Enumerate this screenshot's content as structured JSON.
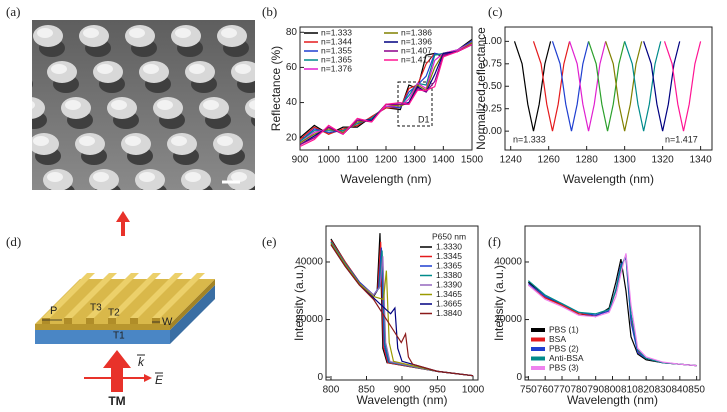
{
  "panel_labels": [
    "(a)",
    "(b)",
    "(c)",
    "(d)",
    "(e)",
    "(f)"
  ],
  "diagram": {
    "labels": [
      "P",
      "T3",
      "T2",
      "T1",
      "W",
      "k",
      "E",
      "TM"
    ]
  },
  "chart_data": [
    {
      "type": "line",
      "y_label": "Reflectance (%)",
      "x_label": "Wavelength (nm)",
      "x": [
        900,
        950,
        1000,
        1050,
        1100,
        1150,
        1200,
        1250,
        1280,
        1310,
        1340,
        1370,
        1400,
        1450,
        1500
      ],
      "xlim": [
        900,
        1500
      ],
      "ylim": [
        13,
        83
      ],
      "xticks": [
        900,
        1000,
        1100,
        1200,
        1300,
        1400,
        1500
      ],
      "yticks": [
        20,
        40,
        60,
        80
      ],
      "annotations": [
        {
          "text": "D1"
        }
      ],
      "series": [
        {
          "name": "n=1.333",
          "color": "#000000",
          "values": [
            20,
            27,
            22,
            26,
            26,
            32,
            37,
            36,
            50,
            48,
            67,
            68,
            66,
            70,
            76
          ]
        },
        {
          "name": "n=1.344",
          "color": "#e41a1c",
          "values": [
            19,
            26,
            22,
            25,
            27,
            32,
            37,
            37,
            48,
            50,
            62,
            68,
            67,
            70,
            75
          ]
        },
        {
          "name": "n=1.355",
          "color": "#1f3fd0",
          "values": [
            18,
            25,
            23,
            24,
            28,
            31,
            38,
            37,
            46,
            50,
            55,
            68,
            67,
            70,
            75
          ]
        },
        {
          "name": "n=1.365",
          "color": "#008b8b",
          "values": [
            18,
            24,
            24,
            24,
            28,
            31,
            38,
            38,
            44,
            51,
            50,
            67,
            68,
            70,
            74
          ]
        },
        {
          "name": "n=1.376",
          "color": "#e020d0",
          "values": [
            17,
            23,
            25,
            23,
            29,
            30,
            38,
            38,
            42,
            51,
            48,
            64,
            68,
            70,
            74
          ]
        },
        {
          "name": "n=1.386",
          "color": "#808000",
          "values": [
            17,
            22,
            25,
            23,
            29,
            30,
            39,
            38,
            40,
            50,
            47,
            60,
            68,
            69,
            74
          ]
        },
        {
          "name": "n=1.396",
          "color": "#000080",
          "values": [
            16,
            21,
            26,
            22,
            30,
            30,
            39,
            39,
            40,
            49,
            46,
            56,
            68,
            69,
            73
          ]
        },
        {
          "name": "n=1.407",
          "color": "#8b008b",
          "values": [
            16,
            20,
            26,
            22,
            30,
            29,
            39,
            39,
            39,
            48,
            46,
            52,
            67,
            69,
            73
          ]
        },
        {
          "name": "n=1.417",
          "color": "#ff1493",
          "values": [
            15,
            19,
            27,
            22,
            31,
            29,
            39,
            40,
            39,
            47,
            47,
            49,
            66,
            69,
            73
          ]
        }
      ]
    },
    {
      "type": "line",
      "y_label": "Normalized reflectance",
      "x_label": "Wavelength (nm)",
      "xlim": [
        1237,
        1346
      ],
      "ylim": [
        -0.21,
        1.16
      ],
      "xticks": [
        1240,
        1260,
        1280,
        1300,
        1320,
        1340
      ],
      "yticks": [
        {
          "value": 0,
          "label": "0.00"
        },
        {
          "value": 0.25,
          "label": "0.25"
        },
        {
          "value": 0.5,
          "label": "0.50"
        },
        {
          "value": 0.75,
          "label": "0.75"
        },
        {
          "value": 1,
          "label": "1.00"
        }
      ],
      "annotations": [
        {
          "text": "n=1.333"
        },
        {
          "text": "n=1.417"
        }
      ],
      "series": [
        {
          "color": "#000000",
          "x": [
            1242,
            1246,
            1249,
            1252,
            1255,
            1258,
            1261
          ],
          "values": [
            1,
            0.75,
            0.3,
            0,
            0.3,
            0.75,
            1
          ]
        },
        {
          "color": "#e41a1c",
          "x": [
            1252,
            1256,
            1259,
            1262,
            1265,
            1268,
            1271
          ],
          "values": [
            1,
            0.75,
            0.3,
            0,
            0.3,
            0.75,
            1
          ]
        },
        {
          "color": "#1f3fd0",
          "x": [
            1262,
            1266,
            1269,
            1272,
            1275,
            1278,
            1281
          ],
          "values": [
            1,
            0.75,
            0.3,
            0,
            0.3,
            0.75,
            1
          ]
        },
        {
          "color": "#e020d0",
          "x": [
            1271,
            1275,
            1278,
            1281,
            1284,
            1287,
            1290
          ],
          "values": [
            1,
            0.75,
            0.3,
            0,
            0.3,
            0.75,
            1
          ]
        },
        {
          "color": "#2ca02c",
          "x": [
            1281,
            1285,
            1288,
            1291,
            1294,
            1297,
            1300
          ],
          "values": [
            1,
            0.75,
            0.3,
            0,
            0.3,
            0.75,
            1
          ]
        },
        {
          "color": "#808000",
          "x": [
            1290,
            1294,
            1297,
            1300,
            1303,
            1306,
            1309
          ],
          "values": [
            1,
            0.75,
            0.3,
            0,
            0.3,
            0.75,
            1
          ]
        },
        {
          "color": "#008b8b",
          "x": [
            1300,
            1304,
            1307,
            1310,
            1313,
            1316,
            1319
          ],
          "values": [
            1,
            0.75,
            0.3,
            0,
            0.3,
            0.75,
            1
          ]
        },
        {
          "color": "#000080",
          "x": [
            1310,
            1314,
            1317,
            1320,
            1323,
            1326,
            1329
          ],
          "values": [
            1,
            0.75,
            0.3,
            0,
            0.3,
            0.75,
            1
          ]
        },
        {
          "color": "#ff1493",
          "x": [
            1321,
            1325,
            1328,
            1331,
            1334,
            1337,
            1340
          ],
          "values": [
            1,
            0.75,
            0.3,
            0,
            0.3,
            0.75,
            1
          ]
        }
      ]
    },
    {
      "type": "line",
      "y_label": "Intensity (a.u.)",
      "x_label": "Wavelength (nm)",
      "legend_title": "P650 nm",
      "xlim": [
        793,
        1007
      ],
      "ylim": [
        -1000,
        52500
      ],
      "xticks": [
        800,
        850,
        900,
        950,
        1000
      ],
      "yticks": [
        0,
        20000,
        40000
      ],
      "series": [
        {
          "name": "1.3330",
          "color": "#000000",
          "x": [
            800,
            820,
            840,
            860,
            865,
            869,
            873,
            879,
            950,
            1000
          ],
          "values": [
            48000,
            40000,
            33000,
            28000,
            30000,
            50000,
            10000,
            5000,
            2000,
            500
          ]
        },
        {
          "name": "1.3345",
          "color": "#e41a1c",
          "x": [
            800,
            820,
            840,
            860,
            866,
            870,
            874,
            880,
            950,
            1000
          ],
          "values": [
            47500,
            40000,
            33000,
            28500,
            30500,
            47000,
            10500,
            5000,
            2000,
            500
          ]
        },
        {
          "name": "1.3365",
          "color": "#1f3fd0",
          "x": [
            800,
            820,
            840,
            860,
            867,
            871,
            875,
            881,
            950,
            1000
          ],
          "values": [
            47000,
            39500,
            33000,
            28500,
            31000,
            45000,
            11000,
            5200,
            2000,
            500
          ]
        },
        {
          "name": "1.3380",
          "color": "#008b8b",
          "x": [
            800,
            820,
            840,
            860,
            868,
            872,
            876,
            882,
            950,
            1000
          ],
          "values": [
            47000,
            39500,
            32500,
            28500,
            31000,
            44000,
            11500,
            5200,
            2000,
            500
          ]
        },
        {
          "name": "1.3390",
          "color": "#9467bd",
          "x": [
            800,
            820,
            840,
            860,
            869,
            873,
            877,
            883,
            950,
            1000
          ],
          "values": [
            46500,
            39000,
            32500,
            28500,
            31500,
            42000,
            12000,
            5400,
            2000,
            500
          ]
        },
        {
          "name": "1.3465",
          "color": "#9a9a00",
          "x": [
            800,
            820,
            840,
            860,
            874,
            878,
            882,
            888,
            950,
            1000
          ],
          "values": [
            46500,
            39000,
            32500,
            28000,
            27000,
            37000,
            12000,
            5500,
            2000,
            500
          ]
        },
        {
          "name": "1.3665",
          "color": "#000080",
          "x": [
            800,
            820,
            840,
            860,
            884,
            890,
            894,
            900,
            950,
            1000
          ],
          "values": [
            46000,
            38500,
            32000,
            27500,
            22000,
            24000,
            10000,
            5500,
            2000,
            500
          ]
        },
        {
          "name": "1.3840",
          "color": "#8b1a1a",
          "x": [
            800,
            820,
            840,
            860,
            899,
            905,
            909,
            915,
            950,
            1000
          ],
          "values": [
            46000,
            38500,
            32000,
            27000,
            12000,
            15000,
            7000,
            4500,
            2000,
            500
          ]
        }
      ]
    },
    {
      "type": "line",
      "y_label": "Intensity (a.u.)",
      "x_label": "Wavelength (nm)",
      "x": [
        750,
        760,
        770,
        780,
        790,
        798,
        802,
        805,
        808,
        811,
        815,
        820,
        830,
        840,
        850
      ],
      "xlim": [
        748,
        852
      ],
      "ylim": [
        -1000,
        52500
      ],
      "xticks": [
        750,
        760,
        770,
        780,
        790,
        800,
        810,
        820,
        830,
        840,
        850
      ],
      "yticks": [
        0,
        20000,
        40000
      ],
      "series": [
        {
          "name": "PBS (1)",
          "color": "#000000",
          "values": [
            33000,
            28000,
            25000,
            22000,
            21000,
            24000,
            33000,
            41000,
            30000,
            14000,
            8000,
            6000,
            5000,
            4500,
            4000
          ]
        },
        {
          "name": "BSA",
          "color": "#e41a1c",
          "values": [
            32000,
            27500,
            25000,
            22000,
            21500,
            23000,
            30000,
            38000,
            42000,
            20000,
            9000,
            6500,
            5000,
            4500,
            4000
          ]
        },
        {
          "name": "PBS (2)",
          "color": "#1f3fd0",
          "values": [
            32500,
            28000,
            25500,
            22500,
            21500,
            23000,
            30500,
            39000,
            41500,
            19000,
            8500,
            6500,
            5000,
            4500,
            4000
          ]
        },
        {
          "name": "Anti-BSA",
          "color": "#008b8b",
          "values": [
            33500,
            28500,
            25500,
            22500,
            22000,
            23500,
            30000,
            38000,
            42500,
            22000,
            9500,
            6500,
            5000,
            4500,
            4000
          ]
        },
        {
          "name": "PBS (3)",
          "color": "#ee82ee",
          "values": [
            32000,
            27000,
            24500,
            21500,
            21000,
            22500,
            28000,
            36000,
            43000,
            25000,
            10000,
            7000,
            5200,
            4500,
            4000
          ]
        }
      ]
    }
  ]
}
